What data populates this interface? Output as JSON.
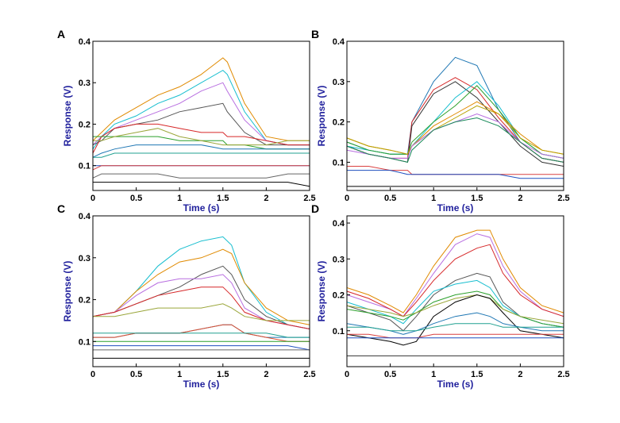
{
  "chart_data": [
    {
      "type": "line",
      "panel_label": "A",
      "xlabel": "Time (s)",
      "ylabel": "Response (V)",
      "xlim": [
        0,
        2.5
      ],
      "ylim": [
        0.04,
        0.4
      ],
      "xticks": [
        "0",
        "0.5",
        "1",
        "1.5",
        "2",
        "2.5"
      ],
      "yticks": [
        "0.1",
        "0.2",
        "0.3",
        "0.4"
      ],
      "x": [
        0,
        0.1,
        0.25,
        0.5,
        0.75,
        1.0,
        1.25,
        1.5,
        1.55,
        1.75,
        2.0,
        2.25,
        2.5
      ],
      "series": [
        {
          "color": "#e08a00",
          "values": [
            0.16,
            0.18,
            0.21,
            0.24,
            0.27,
            0.29,
            0.32,
            0.36,
            0.35,
            0.25,
            0.17,
            0.16,
            0.16
          ]
        },
        {
          "color": "#17becf",
          "values": [
            0.14,
            0.17,
            0.2,
            0.22,
            0.25,
            0.27,
            0.3,
            0.33,
            0.32,
            0.23,
            0.16,
            0.15,
            0.15
          ]
        },
        {
          "color": "#b86ee0",
          "values": [
            0.15,
            0.17,
            0.19,
            0.21,
            0.23,
            0.25,
            0.28,
            0.3,
            0.28,
            0.21,
            0.16,
            0.15,
            0.15
          ]
        },
        {
          "color": "#555555",
          "values": [
            0.15,
            0.16,
            0.19,
            0.2,
            0.21,
            0.23,
            0.24,
            0.25,
            0.23,
            0.18,
            0.15,
            0.15,
            0.15
          ]
        },
        {
          "color": "#d62728",
          "values": [
            0.13,
            0.17,
            0.19,
            0.2,
            0.2,
            0.19,
            0.18,
            0.18,
            0.17,
            0.17,
            0.16,
            0.15,
            0.15
          ]
        },
        {
          "color": "#2ca02c",
          "values": [
            0.17,
            0.17,
            0.17,
            0.17,
            0.17,
            0.16,
            0.16,
            0.16,
            0.15,
            0.15,
            0.14,
            0.14,
            0.14
          ]
        },
        {
          "color": "#9aa63a",
          "values": [
            0.16,
            0.16,
            0.17,
            0.18,
            0.19,
            0.17,
            0.16,
            0.15,
            0.15,
            0.15,
            0.15,
            0.16,
            0.16
          ]
        },
        {
          "color": "#1f77b4",
          "values": [
            0.12,
            0.13,
            0.14,
            0.15,
            0.15,
            0.15,
            0.15,
            0.14,
            0.14,
            0.14,
            0.14,
            0.14,
            0.14
          ]
        },
        {
          "color": "#20a090",
          "values": [
            0.12,
            0.12,
            0.13,
            0.13,
            0.13,
            0.13,
            0.13,
            0.13,
            0.13,
            0.13,
            0.13,
            0.13,
            0.13
          ]
        },
        {
          "color": "#1f4fbf",
          "values": [
            0.1,
            0.1,
            0.1,
            0.1,
            0.1,
            0.1,
            0.1,
            0.1,
            0.1,
            0.1,
            0.1,
            0.1,
            0.1
          ]
        },
        {
          "color": "#d94040",
          "values": [
            0.09,
            0.1,
            0.1,
            0.1,
            0.1,
            0.1,
            0.1,
            0.1,
            0.1,
            0.1,
            0.1,
            0.1,
            0.1
          ]
        },
        {
          "color": "#666666",
          "values": [
            0.07,
            0.08,
            0.08,
            0.08,
            0.08,
            0.07,
            0.07,
            0.07,
            0.07,
            0.07,
            0.07,
            0.08,
            0.08
          ]
        },
        {
          "color": "#000000",
          "values": [
            0.06,
            0.06,
            0.06,
            0.06,
            0.06,
            0.06,
            0.06,
            0.06,
            0.06,
            0.06,
            0.06,
            0.06,
            0.05
          ]
        }
      ]
    },
    {
      "type": "line",
      "panel_label": "B",
      "xlabel": "Time (s)",
      "ylabel": "Response (V)",
      "xlim": [
        0,
        2.5
      ],
      "ylim": [
        0.03,
        0.4
      ],
      "xticks": [
        "0",
        "0.5",
        "1",
        "1.5",
        "2",
        "2.5"
      ],
      "yticks": [
        "0.1",
        "0.2",
        "0.3",
        "0.4"
      ],
      "x": [
        0,
        0.25,
        0.5,
        0.7,
        0.75,
        1.0,
        1.25,
        1.5,
        1.75,
        2.0,
        2.25,
        2.5
      ],
      "series": [
        {
          "color": "#1f77b4",
          "values": [
            0.15,
            0.13,
            0.12,
            0.12,
            0.2,
            0.3,
            0.36,
            0.34,
            0.23,
            0.15,
            0.11,
            0.1
          ]
        },
        {
          "color": "#d62728",
          "values": [
            0.14,
            0.12,
            0.11,
            0.11,
            0.2,
            0.28,
            0.31,
            0.28,
            0.21,
            0.15,
            0.11,
            0.1
          ]
        },
        {
          "color": "#333333",
          "values": [
            0.14,
            0.12,
            0.11,
            0.1,
            0.19,
            0.27,
            0.3,
            0.26,
            0.2,
            0.14,
            0.1,
            0.09
          ]
        },
        {
          "color": "#17becf",
          "values": [
            0.14,
            0.13,
            0.12,
            0.12,
            0.14,
            0.2,
            0.26,
            0.3,
            0.24,
            0.16,
            0.12,
            0.11
          ]
        },
        {
          "color": "#2ca02c",
          "values": [
            0.15,
            0.13,
            0.12,
            0.12,
            0.15,
            0.2,
            0.24,
            0.29,
            0.23,
            0.16,
            0.12,
            0.11
          ]
        },
        {
          "color": "#e08a00",
          "values": [
            0.16,
            0.14,
            0.13,
            0.12,
            0.14,
            0.19,
            0.22,
            0.25,
            0.22,
            0.17,
            0.13,
            0.12
          ]
        },
        {
          "color": "#b8a000",
          "values": [
            0.16,
            0.14,
            0.13,
            0.12,
            0.14,
            0.18,
            0.21,
            0.24,
            0.22,
            0.16,
            0.13,
            0.12
          ]
        },
        {
          "color": "#b86ee0",
          "values": [
            0.13,
            0.12,
            0.11,
            0.11,
            0.14,
            0.18,
            0.2,
            0.22,
            0.2,
            0.15,
            0.12,
            0.11
          ]
        },
        {
          "color": "#1a8a5a",
          "values": [
            0.14,
            0.12,
            0.11,
            0.1,
            0.13,
            0.18,
            0.2,
            0.21,
            0.19,
            0.15,
            0.11,
            0.1
          ]
        },
        {
          "color": "#d94040",
          "values": [
            0.09,
            0.09,
            0.08,
            0.08,
            0.07,
            0.07,
            0.07,
            0.07,
            0.07,
            0.07,
            0.07,
            0.07
          ]
        },
        {
          "color": "#1f4fbf",
          "values": [
            0.08,
            0.08,
            0.08,
            0.07,
            0.07,
            0.07,
            0.07,
            0.07,
            0.07,
            0.06,
            0.06,
            0.06
          ]
        },
        {
          "color": "#000000",
          "values": [
            0.04,
            0.04,
            0.04,
            0.04,
            0.04,
            0.04,
            0.04,
            0.04,
            0.04,
            0.04,
            0.04,
            0.04
          ]
        }
      ]
    },
    {
      "type": "line",
      "panel_label": "C",
      "xlabel": "Time (s)",
      "ylabel": "Response (V)",
      "xlim": [
        0,
        2.5
      ],
      "ylim": [
        0.04,
        0.4
      ],
      "xticks": [
        "0",
        "0.5",
        "1",
        "1.5",
        "2",
        "2.5"
      ],
      "yticks": [
        "0.1",
        "0.2",
        "0.3",
        "0.4"
      ],
      "x": [
        0,
        0.25,
        0.5,
        0.75,
        1.0,
        1.25,
        1.5,
        1.6,
        1.75,
        2.0,
        2.25,
        2.5
      ],
      "series": [
        {
          "color": "#17becf",
          "values": [
            0.16,
            0.17,
            0.22,
            0.28,
            0.32,
            0.34,
            0.35,
            0.33,
            0.24,
            0.17,
            0.14,
            0.13
          ]
        },
        {
          "color": "#e08a00",
          "values": [
            0.16,
            0.17,
            0.22,
            0.26,
            0.29,
            0.3,
            0.32,
            0.31,
            0.24,
            0.18,
            0.15,
            0.14
          ]
        },
        {
          "color": "#555555",
          "values": [
            0.16,
            0.17,
            0.19,
            0.21,
            0.23,
            0.26,
            0.28,
            0.26,
            0.2,
            0.16,
            0.14,
            0.13
          ]
        },
        {
          "color": "#b86ee0",
          "values": [
            0.16,
            0.17,
            0.21,
            0.24,
            0.25,
            0.25,
            0.26,
            0.24,
            0.18,
            0.15,
            0.14,
            0.13
          ]
        },
        {
          "color": "#d62728",
          "values": [
            0.16,
            0.17,
            0.19,
            0.21,
            0.22,
            0.23,
            0.23,
            0.21,
            0.17,
            0.15,
            0.14,
            0.13
          ]
        },
        {
          "color": "#9aa63a",
          "values": [
            0.16,
            0.16,
            0.17,
            0.18,
            0.18,
            0.18,
            0.19,
            0.18,
            0.16,
            0.15,
            0.15,
            0.15
          ]
        },
        {
          "color": "#1f77b4",
          "values": [
            0.11,
            0.11,
            0.12,
            0.12,
            0.12,
            0.13,
            0.14,
            0.14,
            0.12,
            0.11,
            0.11,
            0.11
          ]
        },
        {
          "color": "#e05030",
          "values": [
            0.11,
            0.11,
            0.12,
            0.12,
            0.12,
            0.13,
            0.14,
            0.14,
            0.12,
            0.11,
            0.1,
            0.1
          ]
        },
        {
          "color": "#20a090",
          "values": [
            0.12,
            0.12,
            0.12,
            0.12,
            0.12,
            0.12,
            0.12,
            0.12,
            0.12,
            0.12,
            0.11,
            0.11
          ]
        },
        {
          "color": "#2ca02c",
          "values": [
            0.1,
            0.1,
            0.1,
            0.1,
            0.1,
            0.1,
            0.1,
            0.1,
            0.1,
            0.1,
            0.1,
            0.1
          ]
        },
        {
          "color": "#1f4fbf",
          "values": [
            0.09,
            0.09,
            0.09,
            0.09,
            0.09,
            0.09,
            0.09,
            0.09,
            0.09,
            0.09,
            0.09,
            0.08
          ]
        },
        {
          "color": "#666666",
          "values": [
            0.08,
            0.08,
            0.08,
            0.08,
            0.08,
            0.08,
            0.08,
            0.08,
            0.08,
            0.08,
            0.08,
            0.08
          ]
        },
        {
          "color": "#000000",
          "values": [
            0.06,
            0.06,
            0.06,
            0.06,
            0.06,
            0.06,
            0.06,
            0.06,
            0.06,
            0.06,
            0.06,
            0.06
          ]
        }
      ]
    },
    {
      "type": "line",
      "panel_label": "D",
      "xlabel": "Time (s)",
      "ylabel": "Response (V)",
      "xlim": [
        0,
        2.5
      ],
      "ylim": [
        0.0,
        0.42
      ],
      "xticks": [
        "0",
        "0.5",
        "1",
        "1.5",
        "2",
        "2.5"
      ],
      "yticks": [
        "0.1",
        "0.2",
        "0.3",
        "0.4"
      ],
      "x": [
        0,
        0.25,
        0.5,
        0.65,
        0.8,
        1.0,
        1.25,
        1.5,
        1.65,
        1.8,
        2.0,
        2.25,
        2.5
      ],
      "series": [
        {
          "color": "#e08a00",
          "values": [
            0.22,
            0.2,
            0.17,
            0.15,
            0.2,
            0.28,
            0.36,
            0.38,
            0.38,
            0.3,
            0.22,
            0.17,
            0.15
          ]
        },
        {
          "color": "#b86ee0",
          "values": [
            0.2,
            0.18,
            0.16,
            0.14,
            0.19,
            0.26,
            0.34,
            0.37,
            0.36,
            0.28,
            0.21,
            0.16,
            0.14
          ]
        },
        {
          "color": "#d62728",
          "values": [
            0.21,
            0.19,
            0.16,
            0.14,
            0.18,
            0.24,
            0.3,
            0.33,
            0.34,
            0.26,
            0.2,
            0.16,
            0.14
          ]
        },
        {
          "color": "#555555",
          "values": [
            0.17,
            0.15,
            0.13,
            0.1,
            0.14,
            0.2,
            0.24,
            0.26,
            0.25,
            0.18,
            0.14,
            0.12,
            0.11
          ]
        },
        {
          "color": "#17becf",
          "values": [
            0.18,
            0.16,
            0.14,
            0.12,
            0.16,
            0.21,
            0.23,
            0.24,
            0.22,
            0.17,
            0.14,
            0.12,
            0.11
          ]
        },
        {
          "color": "#2ca02c",
          "values": [
            0.16,
            0.15,
            0.14,
            0.13,
            0.15,
            0.18,
            0.2,
            0.21,
            0.2,
            0.16,
            0.14,
            0.12,
            0.11
          ]
        },
        {
          "color": "#9aa63a",
          "values": [
            0.17,
            0.16,
            0.15,
            0.14,
            0.15,
            0.17,
            0.19,
            0.2,
            0.19,
            0.16,
            0.14,
            0.13,
            0.12
          ]
        },
        {
          "color": "#000000",
          "values": [
            0.09,
            0.08,
            0.07,
            0.06,
            0.07,
            0.14,
            0.18,
            0.2,
            0.19,
            0.15,
            0.1,
            0.09,
            0.08
          ]
        },
        {
          "color": "#1f77b4",
          "values": [
            0.12,
            0.11,
            0.1,
            0.09,
            0.1,
            0.12,
            0.14,
            0.15,
            0.14,
            0.12,
            0.11,
            0.1,
            0.1
          ]
        },
        {
          "color": "#20a090",
          "values": [
            0.11,
            0.11,
            0.1,
            0.1,
            0.1,
            0.11,
            0.12,
            0.12,
            0.12,
            0.11,
            0.11,
            0.11,
            0.11
          ]
        },
        {
          "color": "#d94040",
          "values": [
            0.09,
            0.09,
            0.08,
            0.08,
            0.08,
            0.09,
            0.09,
            0.09,
            0.09,
            0.09,
            0.09,
            0.09,
            0.09
          ]
        },
        {
          "color": "#1f4fbf",
          "values": [
            0.08,
            0.08,
            0.08,
            0.08,
            0.08,
            0.08,
            0.08,
            0.08,
            0.08,
            0.08,
            0.08,
            0.08,
            0.08
          ]
        },
        {
          "color": "#333333",
          "values": [
            0.03,
            0.03,
            0.03,
            0.03,
            0.03,
            0.03,
            0.03,
            0.03,
            0.03,
            0.03,
            0.03,
            0.03,
            0.03
          ]
        }
      ]
    }
  ]
}
